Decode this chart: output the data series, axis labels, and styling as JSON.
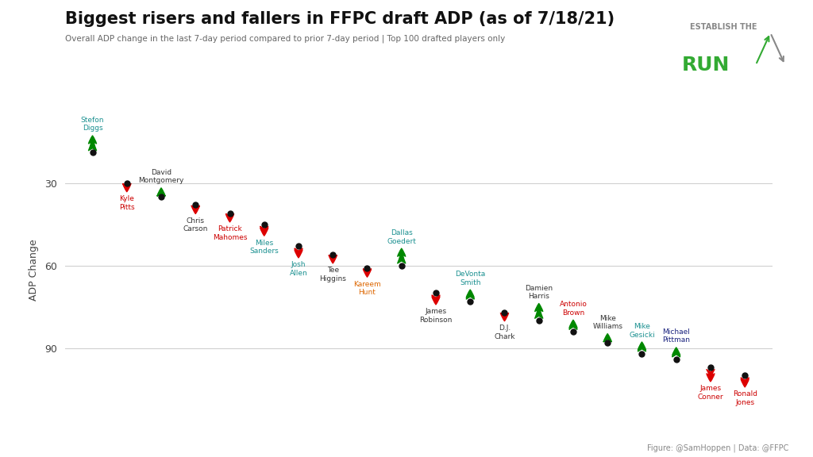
{
  "title": "Biggest risers and fallers in FFPC draft ADP (as of 7/18/21)",
  "subtitle": "Overall ADP change in the last 7-day period compared to prior 7-day period | Top 100 drafted players only",
  "ylabel": "ADP Change",
  "footer": "Figure: @SamHoppen | Data: @FFPC",
  "background_color": "#ffffff",
  "grid_color": "#d0d0d0",
  "yticks": [
    30,
    60,
    90
  ],
  "players": [
    {
      "name": "Stefon\nDiggs",
      "x": 0,
      "adp": 19,
      "change": 7,
      "riser": true,
      "name_color": "#1a9090"
    },
    {
      "name": "Kyle\nPitts",
      "x": 1,
      "adp": 30,
      "change": 4,
      "riser": false,
      "name_color": "#cc0000"
    },
    {
      "name": "David\nMontgomery",
      "x": 2,
      "adp": 35,
      "change": 4,
      "riser": true,
      "name_color": "#333333"
    },
    {
      "name": "Chris\nCarson",
      "x": 3,
      "adp": 38,
      "change": 4,
      "riser": false,
      "name_color": "#333333"
    },
    {
      "name": "Patrick\nMahomes",
      "x": 4,
      "adp": 41,
      "change": 4,
      "riser": false,
      "name_color": "#cc0000"
    },
    {
      "name": "Miles\nSanders",
      "x": 5,
      "adp": 45,
      "change": 5,
      "riser": false,
      "name_color": "#1a9090"
    },
    {
      "name": "Josh\nAllen",
      "x": 6,
      "adp": 53,
      "change": 5,
      "riser": false,
      "name_color": "#1a9090"
    },
    {
      "name": "Tee\nHiggins",
      "x": 7,
      "adp": 56,
      "change": 4,
      "riser": false,
      "name_color": "#333333"
    },
    {
      "name": "Kareem\nHunt",
      "x": 8,
      "adp": 61,
      "change": 4,
      "riser": false,
      "name_color": "#dd6600"
    },
    {
      "name": "Dallas\nGoedert",
      "x": 9,
      "adp": 60,
      "change": 7,
      "riser": true,
      "name_color": "#1a9090"
    },
    {
      "name": "James\nRobinson",
      "x": 10,
      "adp": 70,
      "change": 5,
      "riser": false,
      "name_color": "#333333"
    },
    {
      "name": "DeVonta\nSmith",
      "x": 11,
      "adp": 73,
      "change": 5,
      "riser": true,
      "name_color": "#1a9090"
    },
    {
      "name": "D.J.\nChark",
      "x": 12,
      "adp": 77,
      "change": 4,
      "riser": false,
      "name_color": "#333333"
    },
    {
      "name": "Damien\nHarris",
      "x": 13,
      "adp": 80,
      "change": 7,
      "riser": true,
      "name_color": "#333333"
    },
    {
      "name": "Antonio\nBrown",
      "x": 14,
      "adp": 84,
      "change": 5,
      "riser": true,
      "name_color": "#cc0000"
    },
    {
      "name": "Mike\nWilliams",
      "x": 15,
      "adp": 88,
      "change": 4,
      "riser": true,
      "name_color": "#333333"
    },
    {
      "name": "Mike\nGesicki",
      "x": 16,
      "adp": 92,
      "change": 5,
      "riser": true,
      "name_color": "#1a9090"
    },
    {
      "name": "Michael\nPittman",
      "x": 17,
      "adp": 94,
      "change": 5,
      "riser": true,
      "name_color": "#1a237e"
    },
    {
      "name": "James\nConner",
      "x": 18,
      "adp": 97,
      "change": 6,
      "riser": false,
      "name_color": "#cc0000"
    },
    {
      "name": "Ronald\nJones",
      "x": 19,
      "adp": 100,
      "change": 5,
      "riser": false,
      "name_color": "#cc0000"
    }
  ],
  "riser_color": "#008800",
  "faller_color": "#dd0000",
  "dot_color": "#111111",
  "xlim": [
    -0.8,
    19.8
  ],
  "ylim": [
    113,
    10
  ]
}
